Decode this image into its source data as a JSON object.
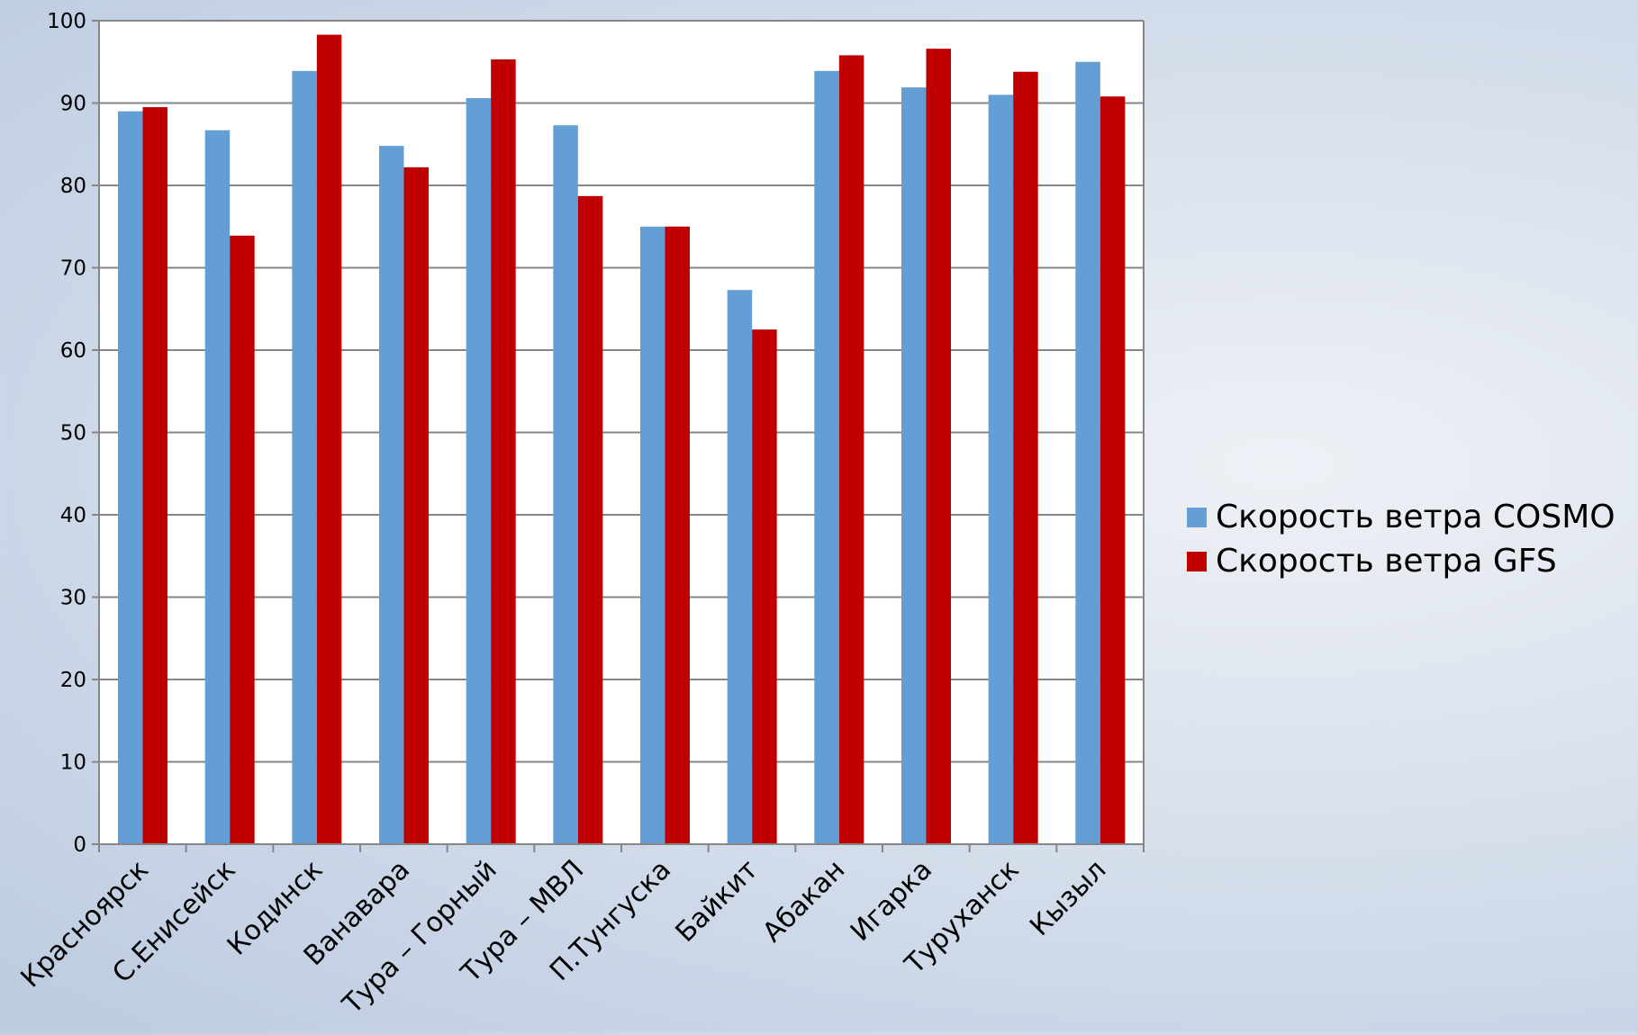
{
  "chart_data": {
    "type": "bar",
    "title": "",
    "xlabel": "",
    "ylabel": "",
    "ylim": [
      0,
      100
    ],
    "yticks": [
      0,
      10,
      20,
      30,
      40,
      50,
      60,
      70,
      80,
      90,
      100
    ],
    "grid": true,
    "legend_position": "right",
    "categories": [
      "Красноярск",
      "С.Енисейск",
      "Кодинск",
      "Ванавара",
      "Тура – Горный",
      "Тура – МВЛ",
      "П.Тунгуска",
      "Байкит",
      "Абакан",
      "Игарка",
      "Туруханск",
      "Кызыл"
    ],
    "series": [
      {
        "name": "Скорость ветра COSMO",
        "color": "#639fd4",
        "values": [
          89,
          86.7,
          93.9,
          84.8,
          90.6,
          87.3,
          75,
          67.3,
          93.9,
          91.9,
          91,
          95
        ]
      },
      {
        "name": "Скорость ветра GFS",
        "color": "#c00000",
        "values": [
          89.5,
          73.9,
          98.3,
          82.2,
          95.3,
          78.7,
          75,
          62.5,
          95.8,
          96.6,
          93.8,
          90.8
        ]
      }
    ]
  }
}
